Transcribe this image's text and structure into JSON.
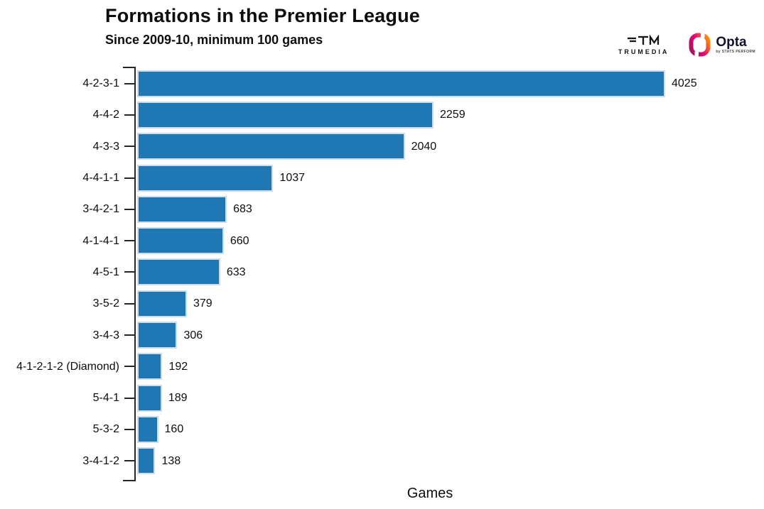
{
  "branding": {
    "trumedia": {
      "wordmark": "TRUMEDIA"
    },
    "opta": {
      "wordmark": "Opta",
      "tagline": "by STATS PERFORM"
    }
  },
  "chart_data": {
    "type": "bar",
    "orientation": "horizontal",
    "title": "Formations in the Premier League",
    "subtitle": "Since 2009-10, minimum 100 games",
    "xlabel": "Games",
    "ylabel": "",
    "categories": [
      "4-2-3-1",
      "4-4-2",
      "4-3-3",
      "4-4-1-1",
      "3-4-2-1",
      "4-1-4-1",
      "4-5-1",
      "3-5-2",
      "3-4-3",
      "4-1-2-1-2 (Diamond)",
      "5-4-1",
      "5-3-2",
      "3-4-1-2"
    ],
    "values": [
      4025,
      2259,
      2040,
      1037,
      683,
      660,
      633,
      379,
      306,
      192,
      189,
      160,
      138
    ],
    "xlim": [
      0,
      4480
    ],
    "grid": false,
    "legend": "none",
    "bar_color": "#1f77b4",
    "bar_edge_color": "#cdddec",
    "axis_color": "#262626",
    "value_labels_shown": true
  }
}
